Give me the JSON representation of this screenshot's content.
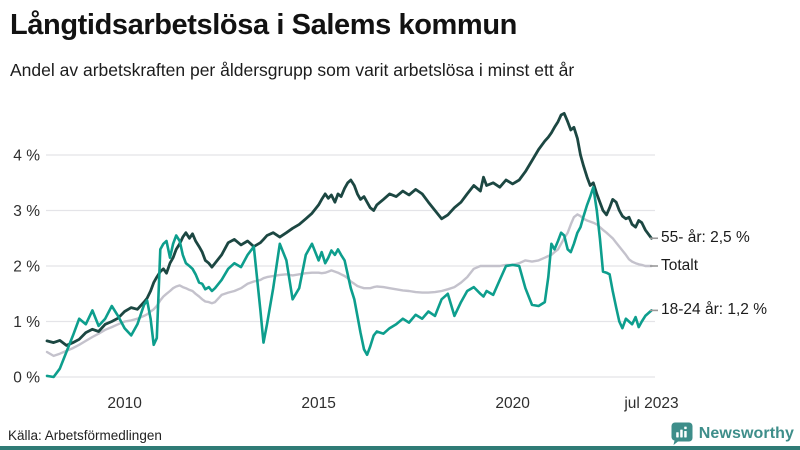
{
  "header": {
    "title": "Långtidsarbetslösa i Salems kommun",
    "subtitle": "Andel av arbetskraften per åldersgrupp som varit arbetslösa i minst ett år"
  },
  "footer": {
    "source": "Källa: Arbetsförmedlingen",
    "brand": "Newsworthy"
  },
  "colors": {
    "grid": "#e4e4e8",
    "axis_text": "#2e2e2e",
    "label_tick": "#999999",
    "brand_teal": "#3e8e8a",
    "bottom_bar": "#2f7b76"
  },
  "chart_data": {
    "type": "line",
    "title": "Långtidsarbetslösa i Salems kommun",
    "subtitle": "Andel av arbetskraften per åldersgrupp som varit arbetslösa i minst ett år",
    "x_unit": "decimal_year",
    "x_range": [
      2008.0,
      2023.58
    ],
    "ylim": [
      0,
      4.9
    ],
    "grid": "horizontal",
    "legend_position": "right-of-line-ends",
    "yticks": [
      {
        "label": "0 %",
        "value": 0
      },
      {
        "label": "1 %",
        "value": 1
      },
      {
        "label": "2 %",
        "value": 2
      },
      {
        "label": "3 %",
        "value": 3
      },
      {
        "label": "4 %",
        "value": 4
      }
    ],
    "xticks": [
      {
        "label": "2010",
        "value": 2010
      },
      {
        "label": "2015",
        "value": 2015
      },
      {
        "label": "2020",
        "value": 2020
      },
      {
        "label": "jul 2023",
        "value": 2023.58
      }
    ],
    "x": [
      2008.0,
      2008.17,
      2008.33,
      2008.5,
      2008.67,
      2008.83,
      2009.0,
      2009.17,
      2009.33,
      2009.5,
      2009.67,
      2009.83,
      2010.0,
      2010.17,
      2010.33,
      2010.5,
      2010.58,
      2010.67,
      2010.75,
      2010.83,
      2010.92,
      2011.0,
      2011.08,
      2011.17,
      2011.25,
      2011.33,
      2011.42,
      2011.5,
      2011.58,
      2011.67,
      2011.75,
      2011.83,
      2011.92,
      2012.0,
      2012.08,
      2012.17,
      2012.25,
      2012.33,
      2012.5,
      2012.67,
      2012.83,
      2013.0,
      2013.17,
      2013.33,
      2013.5,
      2013.58,
      2013.67,
      2013.83,
      2014.0,
      2014.17,
      2014.33,
      2014.5,
      2014.67,
      2014.83,
      2015.0,
      2015.08,
      2015.17,
      2015.25,
      2015.33,
      2015.42,
      2015.5,
      2015.58,
      2015.67,
      2015.75,
      2015.83,
      2015.92,
      2016.0,
      2016.08,
      2016.17,
      2016.25,
      2016.33,
      2016.42,
      2016.5,
      2016.67,
      2016.83,
      2017.0,
      2017.17,
      2017.33,
      2017.5,
      2017.67,
      2017.83,
      2018.0,
      2018.17,
      2018.33,
      2018.5,
      2018.67,
      2018.83,
      2019.0,
      2019.17,
      2019.25,
      2019.33,
      2019.5,
      2019.67,
      2019.83,
      2020.0,
      2020.17,
      2020.33,
      2020.5,
      2020.67,
      2020.83,
      2020.92,
      2021.0,
      2021.08,
      2021.17,
      2021.25,
      2021.33,
      2021.42,
      2021.5,
      2021.58,
      2021.67,
      2021.75,
      2021.83,
      2021.92,
      2022.0,
      2022.08,
      2022.17,
      2022.25,
      2022.33,
      2022.42,
      2022.5,
      2022.58,
      2022.67,
      2022.75,
      2022.83,
      2022.92,
      2023.0,
      2023.08,
      2023.17,
      2023.25,
      2023.33,
      2023.42,
      2023.58
    ],
    "series": [
      {
        "name": "Totalt",
        "label": "Totalt",
        "end_value_label": "Totalt",
        "color": "#c4c2cc",
        "stroke_width": 2.4,
        "values": [
          0.45,
          0.38,
          0.42,
          0.47,
          0.52,
          0.58,
          0.65,
          0.72,
          0.78,
          0.85,
          0.9,
          0.95,
          1.0,
          1.02,
          1.05,
          1.1,
          1.13,
          1.18,
          1.22,
          1.28,
          1.38,
          1.45,
          1.5,
          1.55,
          1.6,
          1.63,
          1.65,
          1.62,
          1.6,
          1.57,
          1.55,
          1.5,
          1.45,
          1.4,
          1.36,
          1.35,
          1.33,
          1.35,
          1.48,
          1.52,
          1.55,
          1.6,
          1.68,
          1.72,
          1.75,
          1.78,
          1.8,
          1.82,
          1.84,
          1.85,
          1.83,
          1.85,
          1.87,
          1.88,
          1.88,
          1.87,
          1.88,
          1.9,
          1.92,
          1.9,
          1.88,
          1.85,
          1.82,
          1.78,
          1.72,
          1.68,
          1.64,
          1.62,
          1.6,
          1.6,
          1.6,
          1.62,
          1.63,
          1.62,
          1.6,
          1.58,
          1.56,
          1.55,
          1.53,
          1.52,
          1.52,
          1.53,
          1.55,
          1.58,
          1.62,
          1.7,
          1.8,
          1.95,
          2.0,
          2.0,
          2.0,
          2.0,
          2.0,
          2.02,
          2.02,
          2.05,
          2.1,
          2.08,
          2.1,
          2.15,
          2.18,
          2.2,
          2.25,
          2.3,
          2.4,
          2.5,
          2.6,
          2.75,
          2.88,
          2.93,
          2.9,
          2.85,
          2.82,
          2.8,
          2.78,
          2.75,
          2.7,
          2.65,
          2.6,
          2.55,
          2.5,
          2.42,
          2.35,
          2.28,
          2.2,
          2.12,
          2.08,
          2.05,
          2.03,
          2.02,
          2.0,
          2.0
        ]
      },
      {
        "name": "55- år",
        "label": "55- år: 2,5 %",
        "end_value_label": "55- år: 2,5 %",
        "color": "#1c4742",
        "stroke_width": 2.8,
        "values": [
          0.65,
          0.62,
          0.66,
          0.57,
          0.62,
          0.68,
          0.8,
          0.86,
          0.82,
          0.95,
          1.0,
          1.06,
          1.18,
          1.25,
          1.22,
          1.35,
          1.42,
          1.55,
          1.7,
          1.8,
          1.9,
          1.95,
          1.87,
          2.05,
          2.15,
          2.3,
          2.4,
          2.52,
          2.6,
          2.5,
          2.58,
          2.45,
          2.35,
          2.25,
          2.1,
          2.05,
          1.98,
          2.05,
          2.2,
          2.42,
          2.48,
          2.38,
          2.45,
          2.35,
          2.42,
          2.48,
          2.55,
          2.6,
          2.52,
          2.6,
          2.68,
          2.75,
          2.85,
          2.95,
          3.1,
          3.2,
          3.3,
          3.22,
          3.28,
          3.15,
          3.3,
          3.25,
          3.4,
          3.5,
          3.55,
          3.45,
          3.3,
          3.2,
          3.25,
          3.15,
          3.05,
          3.0,
          3.1,
          3.2,
          3.3,
          3.25,
          3.35,
          3.28,
          3.38,
          3.3,
          3.15,
          3.0,
          2.85,
          2.92,
          3.05,
          3.15,
          3.3,
          3.45,
          3.35,
          3.6,
          3.45,
          3.5,
          3.42,
          3.55,
          3.48,
          3.55,
          3.7,
          3.9,
          4.1,
          4.25,
          4.32,
          4.4,
          4.5,
          4.6,
          4.72,
          4.75,
          4.6,
          4.45,
          4.5,
          4.3,
          4.0,
          3.8,
          3.6,
          3.45,
          3.5,
          3.3,
          3.15,
          3.0,
          2.92,
          3.05,
          3.2,
          3.15,
          3.0,
          2.9,
          2.85,
          2.88,
          2.75,
          2.7,
          2.82,
          2.78,
          2.65,
          2.5
        ]
      },
      {
        "name": "18-24 år",
        "label": "18-24 år: 1,2 %",
        "end_value_label": "18-24 år: 1,2 %",
        "color": "#0d9e8d",
        "stroke_width": 2.6,
        "values": [
          0.02,
          0.0,
          0.15,
          0.45,
          0.75,
          1.05,
          0.95,
          1.2,
          0.92,
          1.05,
          1.28,
          1.1,
          0.88,
          0.75,
          0.95,
          1.3,
          1.38,
          1.05,
          0.58,
          0.7,
          2.3,
          2.4,
          2.45,
          2.15,
          2.4,
          2.55,
          2.45,
          2.2,
          2.05,
          2.0,
          1.95,
          1.85,
          1.7,
          1.68,
          1.58,
          1.62,
          1.55,
          1.6,
          1.75,
          1.95,
          2.05,
          1.98,
          2.2,
          2.35,
          1.2,
          0.62,
          0.95,
          1.6,
          2.4,
          2.1,
          1.4,
          1.6,
          2.2,
          2.4,
          2.1,
          2.25,
          2.05,
          2.15,
          2.28,
          2.2,
          2.3,
          2.2,
          2.1,
          1.85,
          1.6,
          1.4,
          1.1,
          0.8,
          0.5,
          0.4,
          0.55,
          0.75,
          0.82,
          0.78,
          0.88,
          0.95,
          1.05,
          0.98,
          1.12,
          1.05,
          1.18,
          1.1,
          1.4,
          1.5,
          1.1,
          1.35,
          1.55,
          1.62,
          1.5,
          1.45,
          1.55,
          1.48,
          1.75,
          2.0,
          2.02,
          2.0,
          1.6,
          1.3,
          1.28,
          1.35,
          1.8,
          2.4,
          2.3,
          2.45,
          2.6,
          2.55,
          2.3,
          2.25,
          2.4,
          2.6,
          2.7,
          2.9,
          3.1,
          3.25,
          3.42,
          3.0,
          2.5,
          1.9,
          1.88,
          1.85,
          1.55,
          1.25,
          1.0,
          0.88,
          1.05,
          1.0,
          0.95,
          1.08,
          0.9,
          1.0,
          1.1,
          1.2
        ]
      }
    ]
  }
}
